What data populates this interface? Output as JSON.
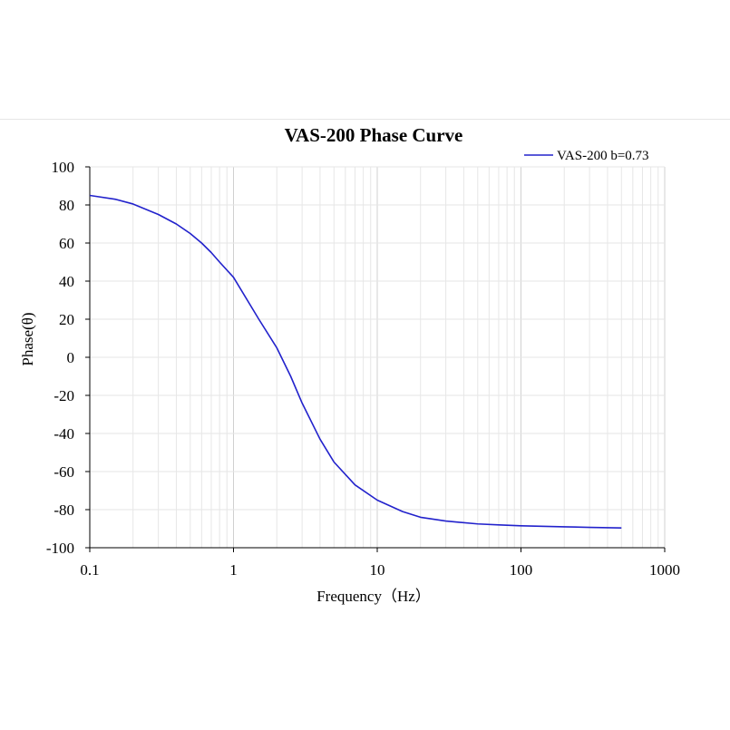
{
  "chart_data": {
    "type": "line",
    "title": "VAS-200 Phase Curve",
    "xlabel": "Frequency（Hz）",
    "ylabel": "Phase(θ)",
    "x_scale": "log",
    "xlim": [
      0.1,
      1000
    ],
    "ylim": [
      -100,
      100
    ],
    "x_ticks": [
      "0.1",
      "1",
      "10",
      "100",
      "1000"
    ],
    "y_ticks": [
      "100",
      "80",
      "60",
      "40",
      "20",
      "0",
      "-20",
      "-40",
      "-60",
      "-80",
      "-100"
    ],
    "grid": true,
    "legend_position": "top-right",
    "series": [
      {
        "name": "VAS-200 b=0.73",
        "color": "#2222cc",
        "x": [
          0.1,
          0.15,
          0.2,
          0.3,
          0.4,
          0.5,
          0.6,
          0.7,
          0.8,
          1.0,
          1.5,
          2.0,
          2.5,
          3.0,
          4.0,
          5.0,
          7.0,
          10,
          15,
          20,
          30,
          50,
          70,
          100,
          200,
          300,
          500
        ],
        "y": [
          85,
          83,
          80.5,
          75,
          70,
          65,
          60,
          55,
          50,
          42,
          20,
          5,
          -10,
          -24,
          -43,
          -55,
          -67,
          -75,
          -81,
          -84,
          -86,
          -87.5,
          -88,
          -88.5,
          -89,
          -89.3,
          -89.6
        ]
      }
    ]
  }
}
